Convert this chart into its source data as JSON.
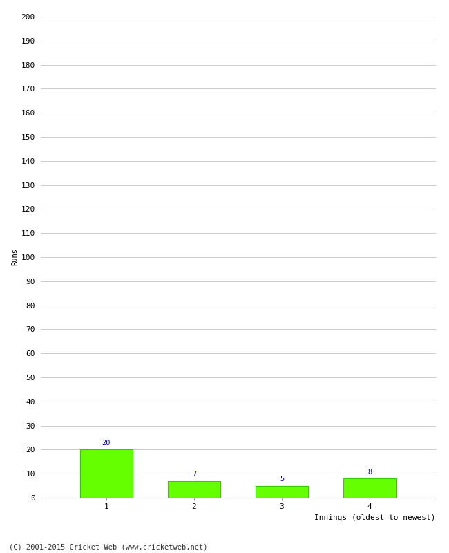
{
  "categories": [
    "1",
    "2",
    "3",
    "4"
  ],
  "values": [
    20,
    7,
    5,
    8
  ],
  "bar_color": "#66ff00",
  "bar_edge_color": "#33cc00",
  "value_color": "#0000cc",
  "ylabel": "Runs",
  "xlabel": "Innings (oldest to newest)",
  "ylim": [
    0,
    200
  ],
  "yticks": [
    0,
    10,
    20,
    30,
    40,
    50,
    60,
    70,
    80,
    90,
    100,
    110,
    120,
    130,
    140,
    150,
    160,
    170,
    180,
    190,
    200
  ],
  "background_color": "#ffffff",
  "grid_color": "#cccccc",
  "footer": "(C) 2001-2015 Cricket Web (www.cricketweb.net)",
  "value_fontsize": 7.5,
  "axis_fontsize": 8,
  "ylabel_fontsize": 7.5,
  "xlabel_fontsize": 8,
  "footer_fontsize": 7.5,
  "bar_width": 0.6
}
